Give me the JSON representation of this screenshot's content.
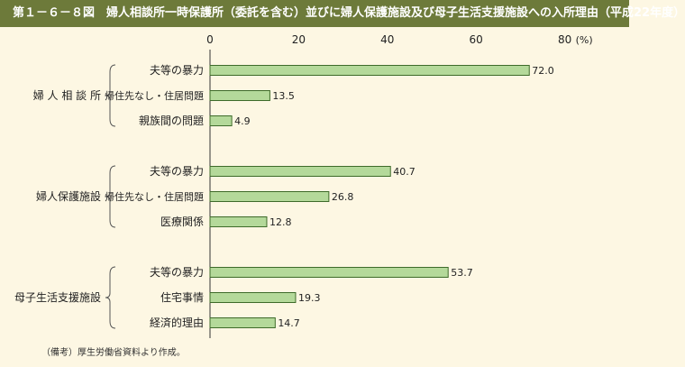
{
  "title": "第１－６－８図　婦人相談所一時保護所（委託を含む）並びに婦人保護施設及び母子生活支援施設への入所理由（平成22年度）",
  "note": "（備考）厚生労働省資料より作成。",
  "colors": {
    "title_bg": "#6d7a3a",
    "bar": "#b4d99a",
    "bar_border": "#3e6b2a",
    "background": "#fdf7e3"
  },
  "chart_data": {
    "type": "bar",
    "orientation": "horizontal",
    "xlim": [
      0,
      80
    ],
    "x_ticks": [
      "0",
      "20",
      "40",
      "60",
      "80"
    ],
    "unit_label": "(%)",
    "grid": false,
    "groups": [
      {
        "name": "婦 人 相 談 所",
        "categories": [
          "夫等の暴力",
          "帰住先なし・住居問題",
          "親族間の問題"
        ],
        "values": [
          72.0,
          13.5,
          4.9
        ],
        "labels": [
          "72.0",
          "13.5",
          "4.9"
        ]
      },
      {
        "name": "婦人保護施設",
        "categories": [
          "夫等の暴力",
          "帰住先なし・住居問題",
          "医療関係"
        ],
        "values": [
          40.7,
          26.8,
          12.8
        ],
        "labels": [
          "40.7",
          "26.8",
          "12.8"
        ]
      },
      {
        "name": "母子生活支援施設",
        "categories": [
          "夫等の暴力",
          "住宅事情",
          "経済的理由"
        ],
        "values": [
          53.7,
          19.3,
          14.7
        ],
        "labels": [
          "53.7",
          "19.3",
          "14.7"
        ]
      }
    ]
  }
}
